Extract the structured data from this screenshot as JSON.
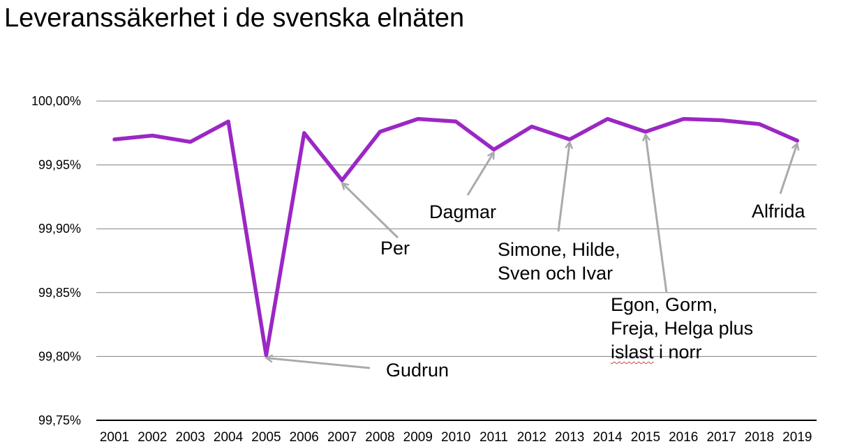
{
  "chart_data": {
    "type": "line",
    "title": "Leveranssäkerhet i de svenska elnäten",
    "xlabel": "",
    "ylabel": "",
    "x": [
      "2001",
      "2002",
      "2003",
      "2004",
      "2005",
      "2006",
      "2007",
      "2008",
      "2009",
      "2010",
      "2011",
      "2012",
      "2013",
      "2014",
      "2015",
      "2016",
      "2017",
      "2018",
      "2019"
    ],
    "series": [
      {
        "values": [
          99.97,
          99.973,
          99.968,
          99.984,
          99.801,
          99.975,
          99.938,
          99.976,
          99.986,
          99.984,
          99.962,
          99.98,
          99.97,
          99.986,
          99.976,
          99.986,
          99.985,
          99.982,
          99.969
        ],
        "color": "#9b27c4"
      }
    ],
    "ylim": [
      99.75,
      100.0
    ],
    "yticks": [
      "99,75%",
      "99,80%",
      "99,85%",
      "99,90%",
      "99,95%",
      "100,00%"
    ],
    "grid": "horizontal",
    "colors": {
      "line": "#9b27c4",
      "arrow": "#aaaaaa",
      "grid": "#808080",
      "axis": "#000000"
    },
    "annotations": [
      {
        "label": "Gudrun",
        "year": "2005"
      },
      {
        "label": "Per",
        "year": "2007"
      },
      {
        "label": "Dagmar",
        "year": "2011"
      },
      {
        "label": "Simone, Hilde,\nSven och Ivar",
        "year": "2013"
      },
      {
        "label": "Egon, Gorm,\nFreja, Helga plus\nislast i norr",
        "year": "2015"
      },
      {
        "label": "Alfrida",
        "year": "2019"
      }
    ]
  }
}
